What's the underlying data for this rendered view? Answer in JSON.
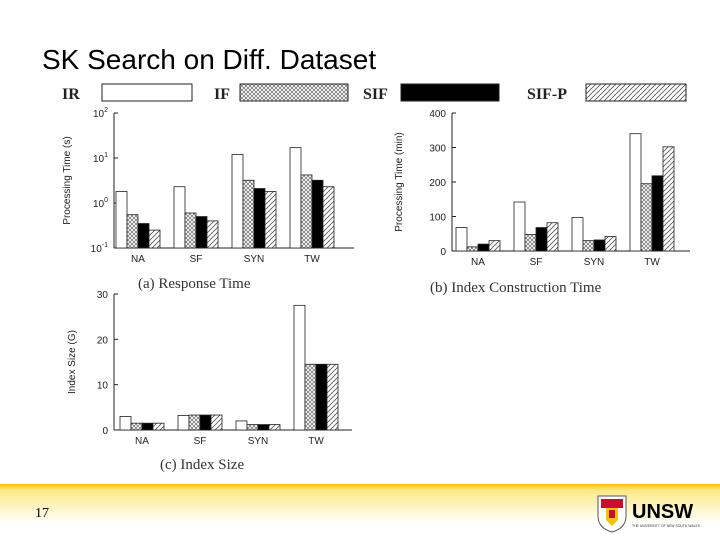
{
  "slide": {
    "title": "SK Search on Diff. Dataset",
    "page_number": "17",
    "logo_text": "UNSW",
    "logo_subtext": "THE UNIVERSITY OF NEW SOUTH WALES"
  },
  "legend": [
    {
      "name": "IR",
      "pattern": "white"
    },
    {
      "name": "IF",
      "pattern": "cross"
    },
    {
      "name": "SIF",
      "pattern": "black"
    },
    {
      "name": "SIF-P",
      "pattern": "hatch"
    }
  ],
  "colors": {
    "accent": "#f5c400",
    "bar_edge": "#222222",
    "axis": "#222222"
  },
  "chart_data": [
    {
      "type": "bar",
      "caption": "(a) Response Time",
      "ylabel": "Processing Time (s)",
      "yscale": "log",
      "ylim": [
        0.1,
        100
      ],
      "yticks": [
        0.1,
        1,
        10,
        100
      ],
      "ytick_labels": [
        {
          "base": "10",
          "exp": "-1"
        },
        {
          "base": "10",
          "exp": "0"
        },
        {
          "base": "10",
          "exp": "1"
        },
        {
          "base": "10",
          "exp": "2"
        }
      ],
      "categories": [
        "NA",
        "SF",
        "SYN",
        "TW"
      ],
      "series": [
        {
          "name": "IR",
          "values": [
            1.8,
            2.3,
            12,
            17
          ]
        },
        {
          "name": "IF",
          "values": [
            0.55,
            0.6,
            3.2,
            4.2
          ]
        },
        {
          "name": "SIF",
          "values": [
            0.35,
            0.5,
            2.1,
            3.2
          ]
        },
        {
          "name": "SIF-P",
          "values": [
            0.25,
            0.4,
            1.8,
            2.3
          ]
        }
      ]
    },
    {
      "type": "bar",
      "caption": "(b) Index Construction Time",
      "ylabel": "Processing Time (min)",
      "yscale": "linear",
      "ylim": [
        0,
        400
      ],
      "yticks": [
        0,
        100,
        200,
        300,
        400
      ],
      "ytick_labels": [
        "0",
        "100",
        "200",
        "300",
        "400"
      ],
      "categories": [
        "NA",
        "SF",
        "SYN",
        "TW"
      ],
      "series": [
        {
          "name": "IR",
          "values": [
            68,
            142,
            97,
            340
          ]
        },
        {
          "name": "IF",
          "values": [
            12,
            48,
            30,
            195
          ]
        },
        {
          "name": "SIF",
          "values": [
            20,
            68,
            32,
            218
          ]
        },
        {
          "name": "SIF-P",
          "values": [
            30,
            82,
            42,
            302
          ]
        }
      ]
    },
    {
      "type": "bar",
      "caption": "(c) Index Size",
      "ylabel": "Index Size (G)",
      "yscale": "linear",
      "ylim": [
        0,
        30
      ],
      "yticks": [
        0,
        10,
        20,
        30
      ],
      "ytick_labels": [
        "0",
        "10",
        "20",
        "30"
      ],
      "categories": [
        "NA",
        "SF",
        "SYN",
        "TW"
      ],
      "series": [
        {
          "name": "IR",
          "values": [
            3.0,
            3.2,
            2.0,
            27.5
          ]
        },
        {
          "name": "IF",
          "values": [
            1.5,
            3.3,
            1.2,
            14.5
          ]
        },
        {
          "name": "SIF",
          "values": [
            1.5,
            3.3,
            1.2,
            14.5
          ]
        },
        {
          "name": "SIF-P",
          "values": [
            1.5,
            3.3,
            1.2,
            14.5
          ]
        }
      ]
    }
  ]
}
